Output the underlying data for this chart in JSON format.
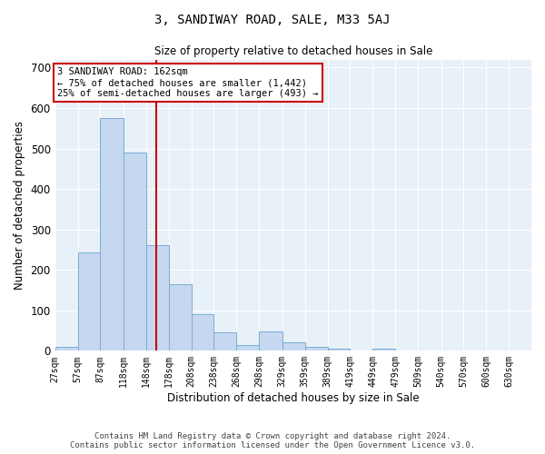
{
  "title": "3, SANDIWAY ROAD, SALE, M33 5AJ",
  "subtitle": "Size of property relative to detached houses in Sale",
  "xlabel": "Distribution of detached houses by size in Sale",
  "ylabel": "Number of detached properties",
  "bar_color": "#c5d8f0",
  "bar_edge_color": "#7aadd4",
  "background_color": "#e8f0f8",
  "grid_color": "#ffffff",
  "vline_x": 162,
  "vline_color": "#cc0000",
  "annotation_text": "3 SANDIWAY ROAD: 162sqm\n← 75% of detached houses are smaller (1,442)\n25% of semi-detached houses are larger (493) →",
  "annotation_box_color": "#cc0000",
  "footer_text": "Contains HM Land Registry data © Crown copyright and database right 2024.\nContains public sector information licensed under the Open Government Licence v3.0.",
  "tick_labels": [
    "27sqm",
    "57sqm",
    "87sqm",
    "118sqm",
    "148sqm",
    "178sqm",
    "208sqm",
    "238sqm",
    "268sqm",
    "298sqm",
    "329sqm",
    "359sqm",
    "389sqm",
    "419sqm",
    "449sqm",
    "479sqm",
    "509sqm",
    "540sqm",
    "570sqm",
    "600sqm",
    "630sqm"
  ],
  "tick_positions": [
    27,
    57,
    87,
    118,
    148,
    178,
    208,
    238,
    268,
    298,
    329,
    359,
    389,
    419,
    449,
    479,
    509,
    540,
    570,
    600,
    630
  ],
  "bar_lefts": [
    27,
    57,
    87,
    118,
    148,
    178,
    208,
    238,
    268,
    298,
    329,
    359,
    389,
    419,
    449,
    479,
    509,
    540,
    570,
    600
  ],
  "bar_widths": [
    30,
    30,
    31,
    30,
    30,
    30,
    30,
    30,
    30,
    31,
    30,
    30,
    30,
    30,
    30,
    30,
    31,
    30,
    30,
    30
  ],
  "bar_heights": [
    10,
    243,
    575,
    490,
    262,
    165,
    91,
    45,
    15,
    48,
    20,
    10,
    5,
    0,
    5,
    0,
    0,
    0,
    0,
    0
  ],
  "ylim": [
    0,
    720
  ],
  "yticks": [
    0,
    100,
    200,
    300,
    400,
    500,
    600,
    700
  ]
}
